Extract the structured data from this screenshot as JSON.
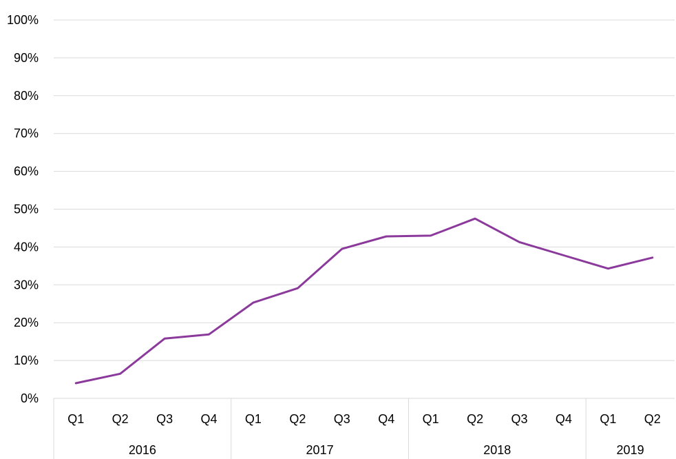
{
  "chart_data": {
    "type": "line",
    "title": "",
    "xlabel": "",
    "ylabel": "",
    "ylim": [
      0,
      100
    ],
    "y_ticks": [
      "0%",
      "10%",
      "20%",
      "30%",
      "40%",
      "50%",
      "60%",
      "70%",
      "80%",
      "90%",
      "100%"
    ],
    "grid": "horizontal",
    "legend": "none",
    "categories": [
      "Q1",
      "Q2",
      "Q3",
      "Q4",
      "Q1",
      "Q2",
      "Q3",
      "Q4",
      "Q1",
      "Q2",
      "Q3",
      "Q4",
      "Q1",
      "Q2"
    ],
    "groups": [
      {
        "label": "2016",
        "count": 4
      },
      {
        "label": "2017",
        "count": 4
      },
      {
        "label": "2018",
        "count": 4
      },
      {
        "label": "2019",
        "count": 2
      }
    ],
    "series": [
      {
        "values": [
          4.0,
          6.5,
          15.8,
          16.9,
          25.3,
          29.1,
          39.5,
          42.8,
          43.0,
          47.5,
          41.3,
          37.8,
          34.3,
          37.2
        ],
        "color": "#8b3a9c"
      }
    ]
  },
  "colors": {
    "gridline": "#d9d9d9",
    "axis": "#d9d9d9",
    "line": "#8b3a9c"
  }
}
